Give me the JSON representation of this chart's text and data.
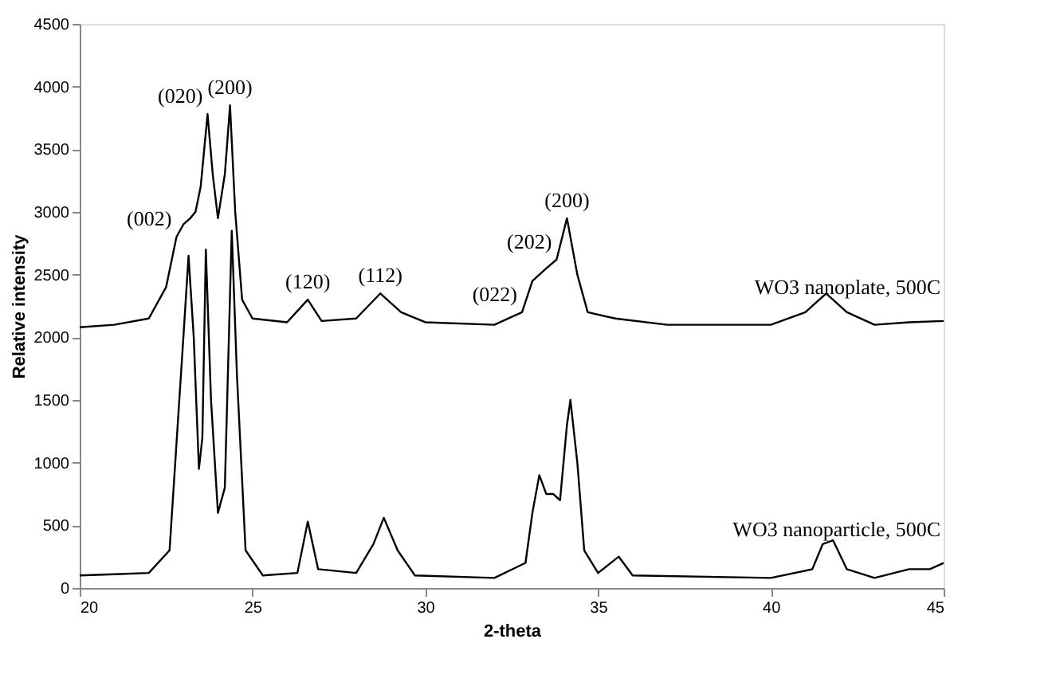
{
  "chart_data": {
    "type": "line",
    "xlabel": "2-theta",
    "ylabel": "Relative intensity",
    "xlim": [
      20,
      45
    ],
    "xticks": [
      20,
      25,
      30,
      35,
      40,
      45
    ],
    "ylim": [
      0,
      4500
    ],
    "yticks": [
      0,
      500,
      1000,
      1500,
      2000,
      2500,
      3000,
      3500,
      4000,
      4500
    ],
    "grid": false,
    "legend": false,
    "marker": "none",
    "line_style": "solid",
    "series": [
      {
        "name": "WO3 nanoplate, 500C",
        "color": "#000000",
        "x": [
          20,
          21,
          22,
          22.5,
          22.8,
          23.0,
          23.2,
          23.35,
          23.5,
          23.7,
          23.85,
          24.0,
          24.2,
          24.35,
          24.5,
          24.7,
          25,
          26,
          26.6,
          27,
          28,
          28.7,
          29.3,
          30,
          32,
          32.8,
          33.1,
          33.5,
          33.8,
          34.1,
          34.4,
          34.7,
          35.5,
          37,
          40,
          41,
          41.6,
          42.2,
          43,
          44,
          45
        ],
        "values": [
          2080,
          2100,
          2150,
          2400,
          2800,
          2900,
          2950,
          3000,
          3200,
          3780,
          3300,
          2950,
          3300,
          3850,
          3000,
          2300,
          2150,
          2120,
          2300,
          2130,
          2150,
          2350,
          2200,
          2120,
          2100,
          2200,
          2450,
          2550,
          2620,
          2950,
          2500,
          2200,
          2150,
          2100,
          2100,
          2200,
          2350,
          2200,
          2100,
          2120,
          2130
        ]
      },
      {
        "name": "WO3 nanoparticle, 500C",
        "color": "#000000",
        "x": [
          20,
          21,
          22,
          22.6,
          23.0,
          23.15,
          23.3,
          23.45,
          23.55,
          23.65,
          23.8,
          24.0,
          24.2,
          24.4,
          24.55,
          24.8,
          25.3,
          26.3,
          26.6,
          26.9,
          28,
          28.5,
          28.8,
          29.2,
          29.7,
          32,
          32.9,
          33.1,
          33.3,
          33.5,
          33.7,
          33.9,
          34.1,
          34.2,
          34.4,
          34.6,
          35,
          35.6,
          36,
          40,
          41.2,
          41.5,
          41.8,
          42.2,
          43,
          44,
          44.6,
          45
        ],
        "values": [
          100,
          110,
          120,
          300,
          2000,
          2650,
          2000,
          950,
          1200,
          2700,
          1500,
          600,
          800,
          2850,
          1700,
          300,
          100,
          120,
          530,
          150,
          120,
          350,
          560,
          300,
          100,
          80,
          200,
          600,
          900,
          750,
          750,
          700,
          1300,
          1500,
          1000,
          300,
          120,
          250,
          100,
          80,
          150,
          350,
          380,
          150,
          80,
          150,
          150,
          200
        ]
      }
    ],
    "annotations": [
      {
        "text": "(002)",
        "x": 22.8,
        "y": 2800
      },
      {
        "text": "(020)",
        "x": 23.7,
        "y": 3780
      },
      {
        "text": "(200)",
        "x": 24.35,
        "y": 3850
      },
      {
        "text": "(120)",
        "x": 26.6,
        "y": 2300
      },
      {
        "text": "(112)",
        "x": 28.7,
        "y": 2350
      },
      {
        "text": "(022)",
        "x": 32.8,
        "y": 2200
      },
      {
        "text": "(202)",
        "x": 33.8,
        "y": 2620
      },
      {
        "text": "(200)",
        "x": 34.1,
        "y": 2950
      }
    ]
  }
}
